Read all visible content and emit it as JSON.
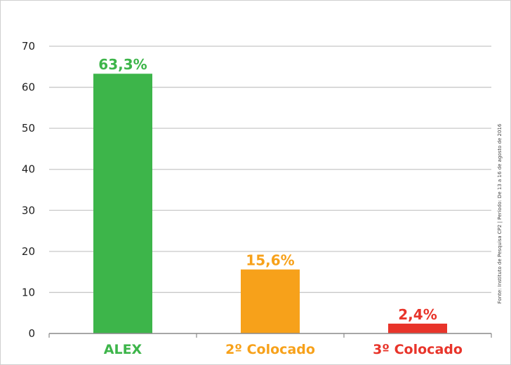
{
  "chart_data": {
    "type": "bar",
    "title": "",
    "xlabel": "",
    "ylabel": "",
    "ylim": [
      0,
      70
    ],
    "yticks": [
      0,
      10,
      20,
      30,
      40,
      50,
      60,
      70
    ],
    "grid": true,
    "categories": [
      "ALEX",
      "2º Colocado",
      "3º Colocado"
    ],
    "values": [
      63.3,
      15.6,
      2.4
    ],
    "data_labels": [
      "63,3%",
      "15,6%",
      "2,4%"
    ],
    "colors": [
      "#3db54a",
      "#f7a11a",
      "#e8342a"
    ],
    "source": "Fonte: Instituto de Pesquisa CP2 | Período: De 13 a 16 de agosto de 2016"
  }
}
